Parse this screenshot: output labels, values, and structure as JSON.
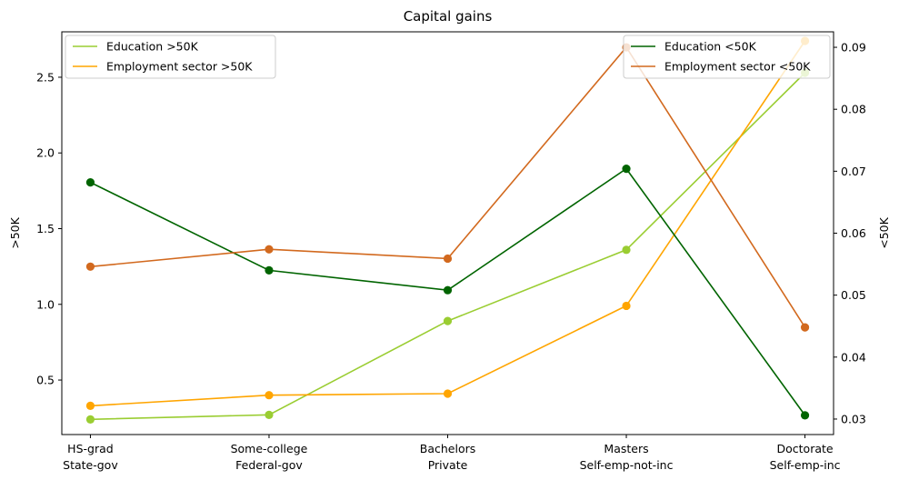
{
  "chart_data": {
    "type": "line",
    "title": "Capital gains",
    "categories_top": [
      "HS-grad",
      "Some-college",
      "Bachelors",
      "Masters",
      "Doctorate"
    ],
    "categories_bottom": [
      "State-gov",
      "Federal-gov",
      "Private",
      "Self-emp-not-inc",
      "Self-emp-inc"
    ],
    "y_left": {
      "label": ">50K",
      "range": [
        0.14,
        2.8
      ],
      "ticks": [
        0.5,
        1.0,
        1.5,
        2.0,
        2.5
      ],
      "tick_labels": [
        "0.5",
        "1.0",
        "1.5",
        "2.0",
        "2.5"
      ]
    },
    "y_right": {
      "label": "<50K",
      "range": [
        0.0275,
        0.0925
      ],
      "ticks": [
        0.03,
        0.04,
        0.05,
        0.06,
        0.07,
        0.08,
        0.09
      ],
      "tick_labels": [
        "0.03",
        "0.04",
        "0.05",
        "0.06",
        "0.07",
        "0.08",
        "0.09"
      ]
    },
    "series": [
      {
        "name": "Education >50K",
        "axis": "left",
        "color": "#9acd32",
        "values": [
          0.24,
          0.27,
          0.89,
          1.36,
          2.53
        ]
      },
      {
        "name": "Employment sector >50K",
        "axis": "left",
        "color": "#ffa500",
        "values": [
          0.33,
          0.4,
          0.41,
          0.99,
          2.74
        ]
      },
      {
        "name": "Education <50K",
        "axis": "right",
        "color": "#006400",
        "values": [
          0.0682,
          0.054,
          0.0508,
          0.0704,
          0.0306
        ]
      },
      {
        "name": "Employment sector <50K",
        "axis": "right",
        "color": "#d2691e",
        "values": [
          0.0546,
          0.0574,
          0.0559,
          0.09,
          0.0448
        ]
      }
    ],
    "legends": [
      {
        "position": "top-left",
        "series": [
          0,
          1
        ]
      },
      {
        "position": "top-right",
        "series": [
          2,
          3
        ]
      }
    ],
    "grid": false
  }
}
